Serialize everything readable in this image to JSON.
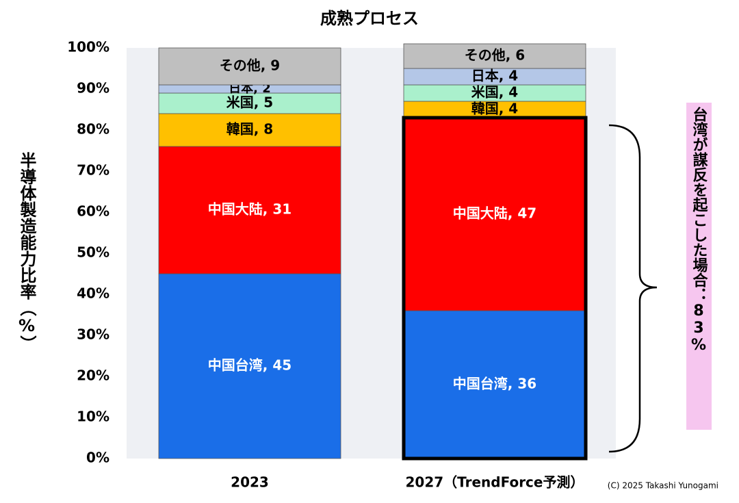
{
  "chart_data": {
    "type": "stacked-bar",
    "title": "成熟プロセス",
    "y_label": "半導体製造能力比率（%）",
    "categories": [
      "2023",
      "2027（TrendForce予測）"
    ],
    "series": [
      {
        "name": "中国台湾",
        "color": "#1a6ee8",
        "values": [
          45,
          36
        ],
        "value_labels": [
          "中国台湾, 45",
          "中国台湾, 36"
        ]
      },
      {
        "name": "中国大陆",
        "color": "#ff0000",
        "values": [
          31,
          47
        ],
        "value_labels": [
          "中国大陆, 31",
          "中国大陆, 47"
        ]
      },
      {
        "name": "韓国",
        "color": "#ffc000",
        "values": [
          8,
          4
        ],
        "value_labels": [
          "韓国, 8",
          "韓国, 4"
        ]
      },
      {
        "name": "米国",
        "color": "#aaf0cc",
        "values": [
          5,
          4
        ],
        "value_labels": [
          "米国, 5",
          "米国, 4"
        ]
      },
      {
        "name": "日本",
        "color": "#b4c7e7",
        "values": [
          2,
          4
        ],
        "value_labels": [
          "日本, 2",
          "日本, 4"
        ]
      },
      {
        "name": "その他",
        "color": "#bfbfbf",
        "values": [
          9,
          6
        ],
        "value_labels": [
          "その他, 9",
          "その他, 6"
        ]
      }
    ],
    "ylim": [
      0,
      100
    ],
    "yticks": [
      {
        "value": 0,
        "label": "0%"
      },
      {
        "value": 10,
        "label": "10%"
      },
      {
        "value": 20,
        "label": "20%"
      },
      {
        "value": 30,
        "label": "30%"
      },
      {
        "value": 40,
        "label": "40%"
      },
      {
        "value": 50,
        "label": "50%"
      },
      {
        "value": 60,
        "label": "60%"
      },
      {
        "value": 70,
        "label": "70%"
      },
      {
        "value": 80,
        "label": "80%"
      },
      {
        "value": 90,
        "label": "90%"
      },
      {
        "value": 100,
        "label": "100%"
      }
    ],
    "grid": false,
    "annotation": "台湾が謀反を起こした場合：83%",
    "credit": "(C) 2025 Takashi Yunogami"
  }
}
